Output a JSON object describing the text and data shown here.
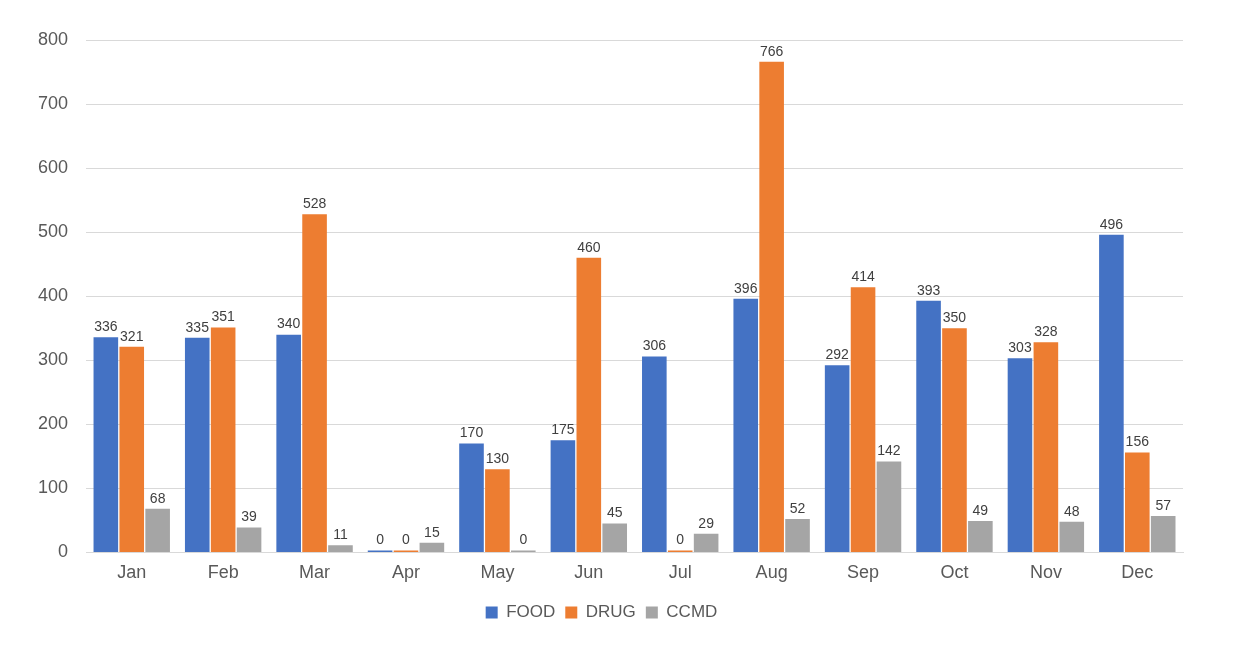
{
  "chart_data": {
    "type": "bar",
    "categories": [
      "Jan",
      "Feb",
      "Mar",
      "Apr",
      "May",
      "Jun",
      "Jul",
      "Aug",
      "Sep",
      "Oct",
      "Nov",
      "Dec"
    ],
    "series": [
      {
        "name": "FOOD",
        "color": "#4472c4",
        "values": [
          336,
          335,
          340,
          0,
          170,
          175,
          306,
          396,
          292,
          393,
          303,
          496
        ]
      },
      {
        "name": "DRUG",
        "color": "#ed7d31",
        "values": [
          321,
          351,
          528,
          0,
          130,
          460,
          0,
          766,
          414,
          350,
          328,
          156
        ]
      },
      {
        "name": "CCMD",
        "color": "#a5a5a5",
        "values": [
          68,
          39,
          11,
          15,
          0,
          45,
          29,
          52,
          142,
          49,
          48,
          57
        ]
      }
    ],
    "ylim": [
      0,
      800
    ],
    "yticks": [
      0,
      100,
      200,
      300,
      400,
      500,
      600,
      700,
      800
    ],
    "grid": "y",
    "legend": "bottom",
    "data_labels": true
  }
}
